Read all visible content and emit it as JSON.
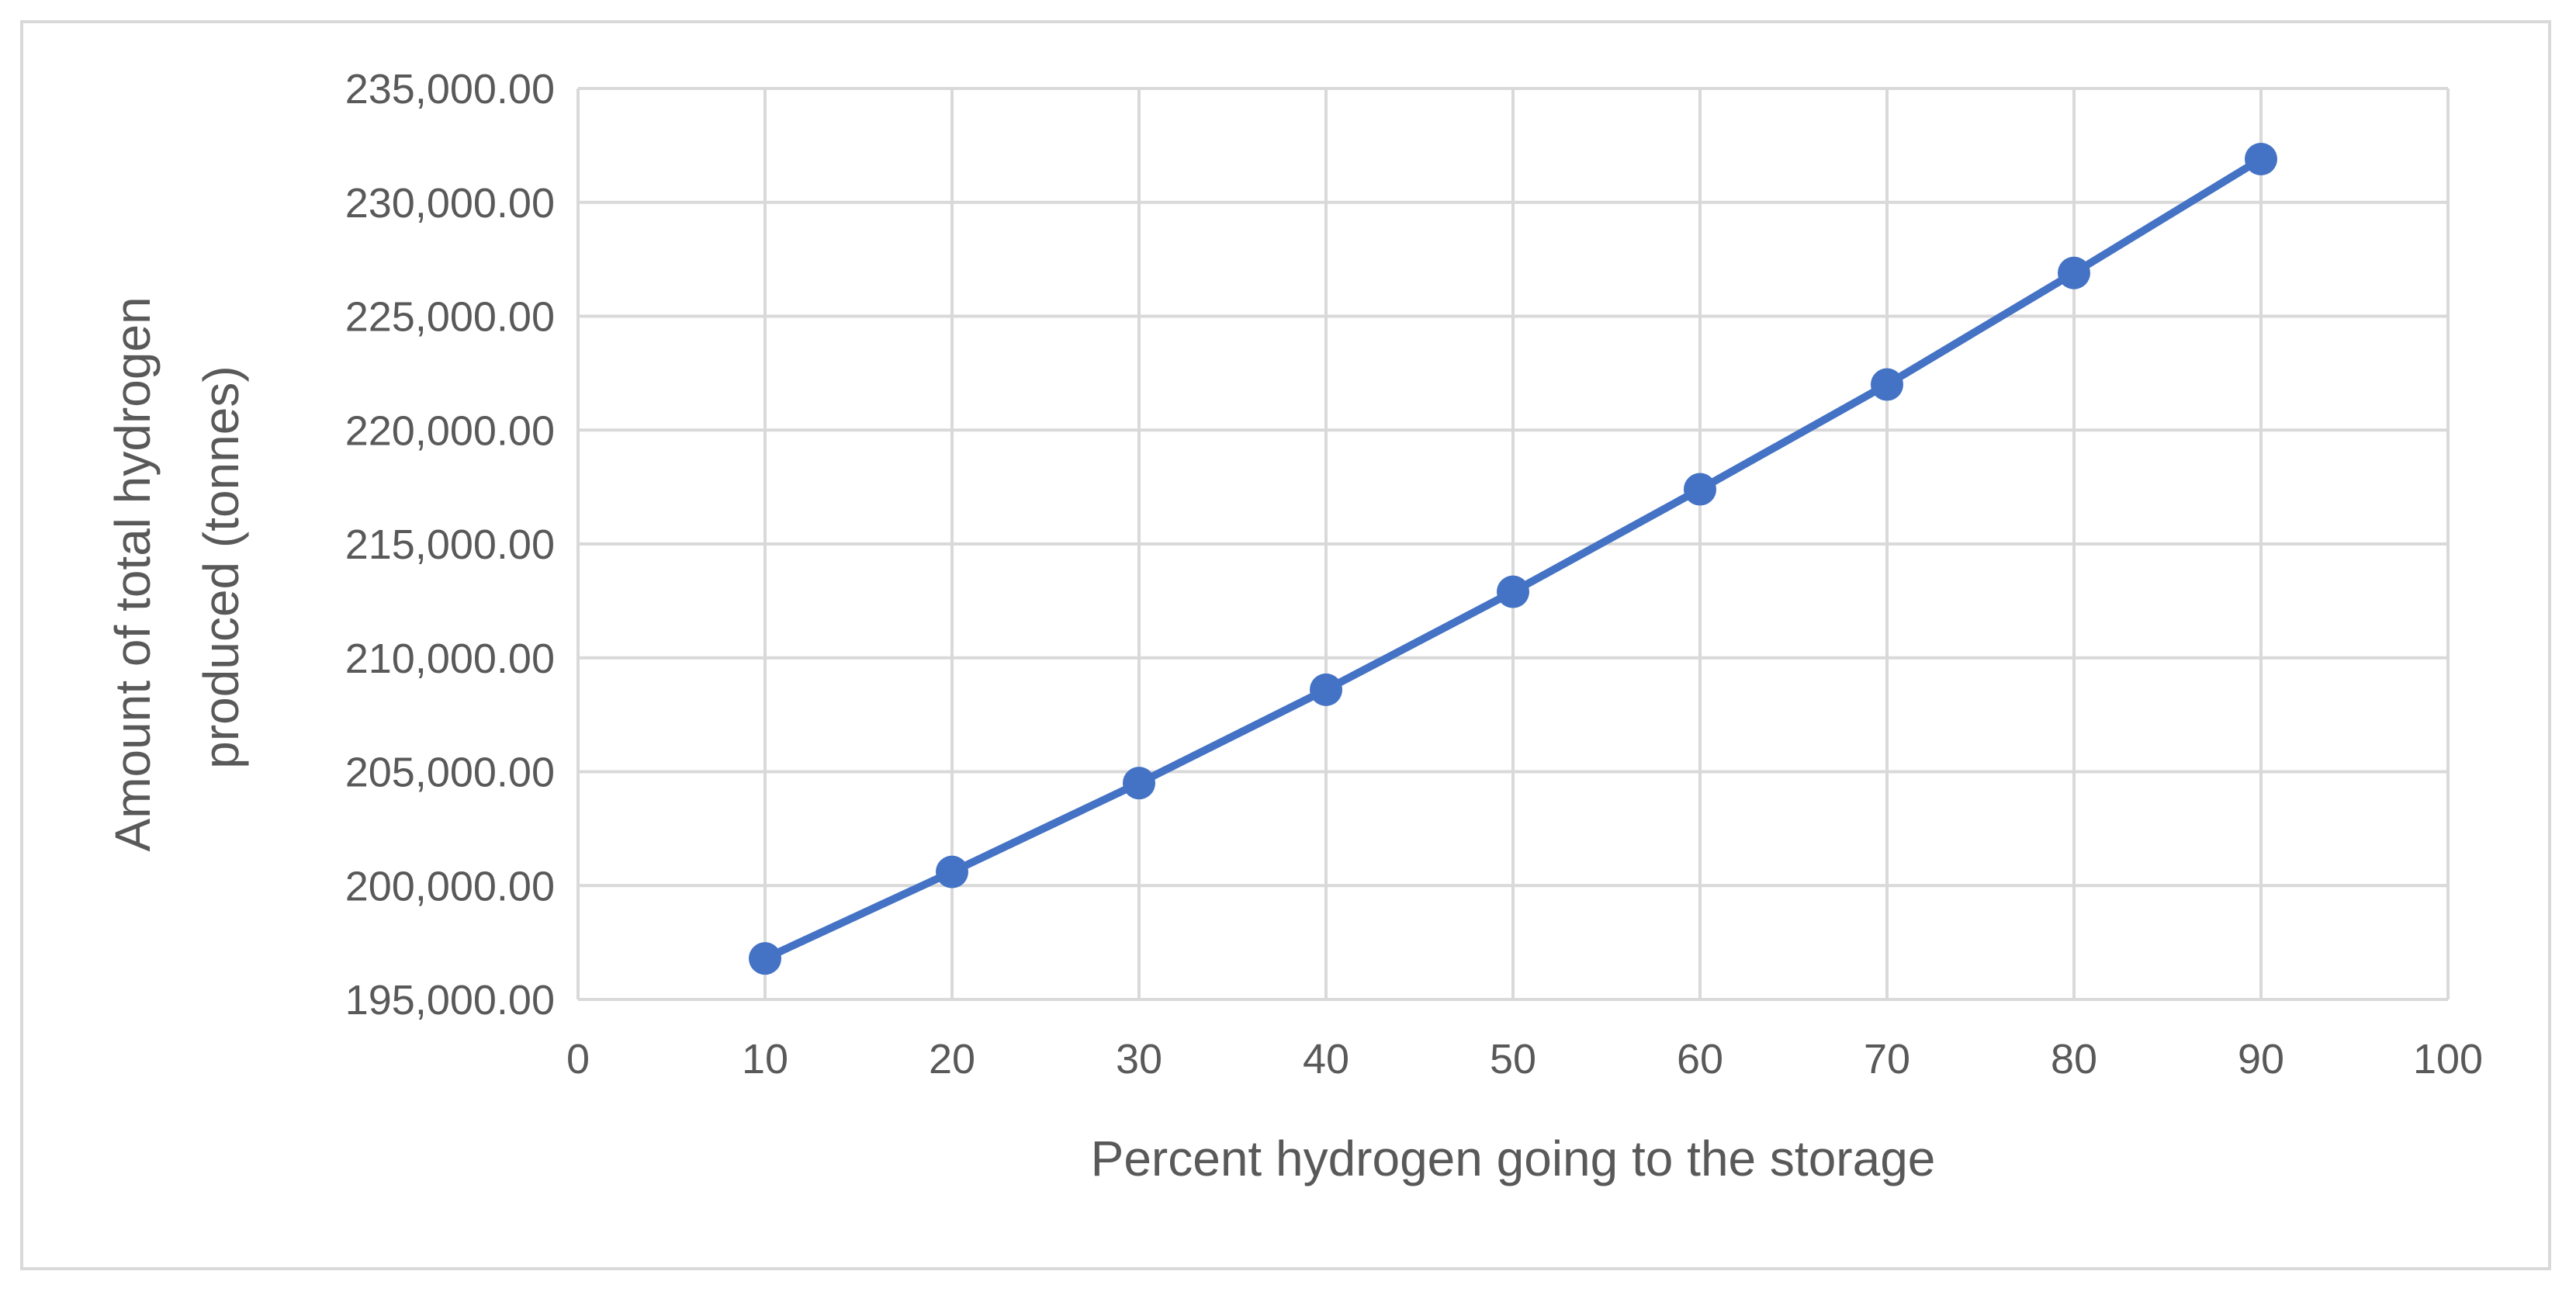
{
  "chart_data": {
    "type": "line",
    "title": "",
    "xlabel": "Percent hydrogen going to the storage",
    "ylabel_lines": [
      "Amount of total hydrogen",
      "produced (tonnes)"
    ],
    "xlim": [
      0,
      100
    ],
    "ylim": [
      195000,
      235000
    ],
    "x_ticks": [
      "0",
      "10",
      "20",
      "30",
      "40",
      "50",
      "60",
      "70",
      "80",
      "90",
      "100"
    ],
    "y_ticks": [
      "195,000.00",
      "200,000.00",
      "205,000.00",
      "210,000.00",
      "215,000.00",
      "220,000.00",
      "225,000.00",
      "230,000.00",
      "235,000.00"
    ],
    "grid": true,
    "legend": "none",
    "series": [
      {
        "color": "#4472c4",
        "x": [
          10,
          20,
          30,
          40,
          50,
          60,
          70,
          80,
          90
        ],
        "values": [
          196800,
          200600,
          204500,
          208600,
          212900,
          217400,
          222000,
          226900,
          231900
        ]
      }
    ]
  }
}
